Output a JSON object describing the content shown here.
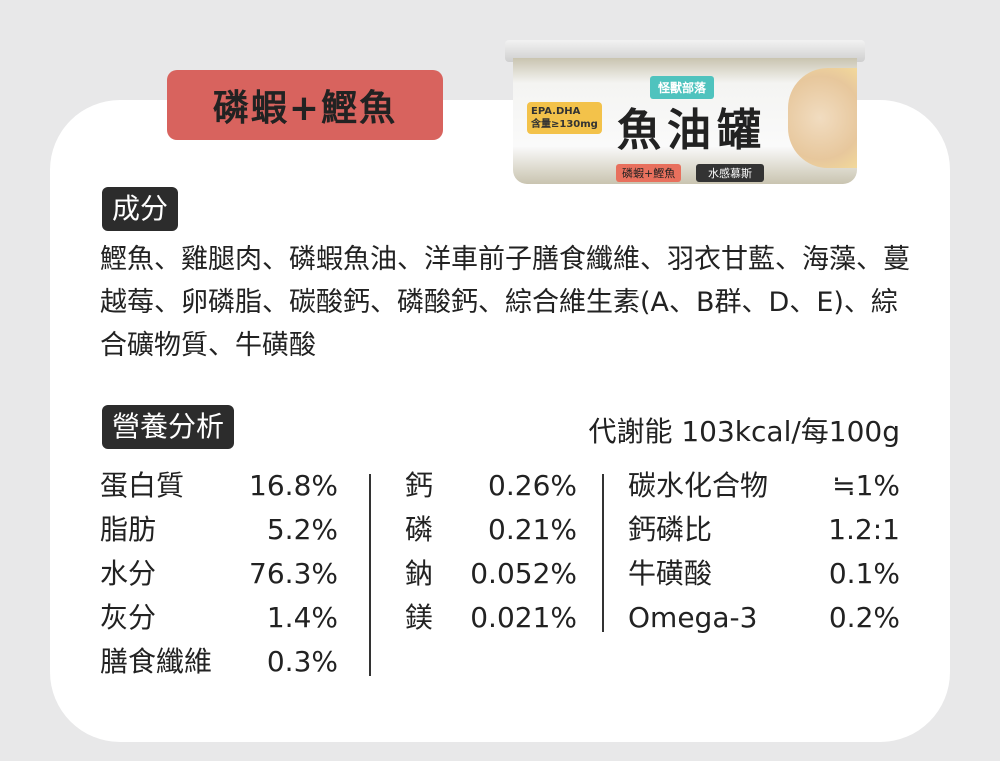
{
  "flavor_label": "磷蝦+鰹魚",
  "can": {
    "brand": "怪獸部落",
    "title": "魚油罐",
    "flavor": "磷蝦+鰹魚",
    "texture": "水感慕斯",
    "epa_dha": "EPA.DHA",
    "epa_amount": "含量≥130mg"
  },
  "ingredients": {
    "heading": "成分",
    "text": "鰹魚、雞腿肉、磷蝦魚油、洋車前子膳食纖維、羽衣甘藍、海藻、蔓越莓、卵磷脂、碳酸鈣、磷酸鈣、綜合維生素(A、B群、D、E)、綜合礦物質、牛磺酸"
  },
  "nutrition": {
    "heading": "營養分析",
    "energy": "代謝能 103kcal/每100g",
    "col1": [
      {
        "label": "蛋白質",
        "value": "16.8%"
      },
      {
        "label": "脂肪",
        "value": "5.2%"
      },
      {
        "label": "水分",
        "value": "76.3%"
      },
      {
        "label": "灰分",
        "value": "1.4%"
      },
      {
        "label": "膳食纖維",
        "value": "0.3%"
      }
    ],
    "col2": [
      {
        "label": "鈣",
        "value": "0.26%"
      },
      {
        "label": "磷",
        "value": "0.21%"
      },
      {
        "label": "鈉",
        "value": "0.052%"
      },
      {
        "label": "鎂",
        "value": "0.021%"
      }
    ],
    "col3": [
      {
        "label": "碳水化合物",
        "value": "≒1%"
      },
      {
        "label": "鈣磷比",
        "value": "1.2:1"
      },
      {
        "label": "牛磺酸",
        "value": "0.1%"
      },
      {
        "label": "Omega-3",
        "value": "0.2%"
      }
    ]
  },
  "colors": {
    "accent": "#d8635e",
    "badge": "#2c2c2c",
    "background": "#e8e8e9"
  }
}
